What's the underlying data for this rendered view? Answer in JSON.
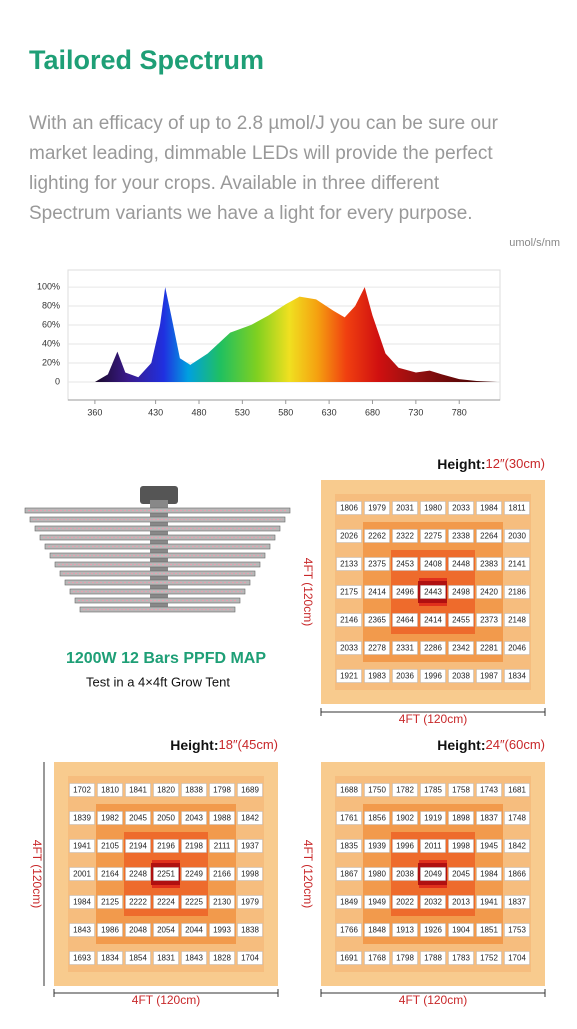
{
  "header": {
    "title": "Tailored Spectrum",
    "lines": [
      "With an efficacy of up to 2.8 µmol/J you can be sure our",
      "market leading, dimmable LEDs will provide the perfect",
      "lighting for your crops.  Available in three different",
      "Spectrum variants we have a light for every purpose."
    ]
  },
  "chart_data": {
    "type": "area",
    "unit": "umol/s/nm",
    "x": [
      360,
      375,
      386,
      395,
      410,
      425,
      435,
      441,
      448,
      458,
      470,
      490,
      516,
      540,
      560,
      580,
      596,
      615,
      635,
      648,
      660,
      671,
      680,
      695,
      710,
      730,
      746,
      760,
      780,
      800,
      824
    ],
    "values": [
      0,
      8,
      32,
      10,
      5,
      20,
      60,
      100,
      70,
      25,
      18,
      30,
      52,
      60,
      70,
      82,
      90,
      87,
      75,
      68,
      80,
      100,
      70,
      30,
      15,
      10,
      12,
      8,
      3,
      1,
      0
    ],
    "xlim": [
      329,
      827
    ],
    "xticks": [
      360,
      430,
      480,
      530,
      580,
      630,
      680,
      730,
      780
    ],
    "ylim": [
      -19,
      118
    ],
    "yticks": [
      0,
      {
        "value": 20,
        "label": "20%"
      },
      {
        "value": 40,
        "label": "40%"
      },
      {
        "value": 60,
        "label": "60%"
      },
      {
        "value": 80,
        "label": "80%"
      },
      {
        "value": 100,
        "label": "100%"
      }
    ],
    "grid": true
  },
  "product": {
    "title": "1200W 12 Bars PPFD MAP",
    "subtitle": "Test in a 4×4ft Grow Tent"
  },
  "maps": [
    {
      "height_label": "Height:",
      "height": "12″(30cm)",
      "side": "4FT (120cm)",
      "bottom": "4FT (120cm)",
      "rows": [
        [
          1806,
          1979,
          2031,
          1980,
          2033,
          1984,
          1811
        ],
        [
          2026,
          2262,
          2322,
          2275,
          2338,
          2264,
          2030
        ],
        [
          2133,
          2375,
          2453,
          2408,
          2448,
          2383,
          2141
        ],
        [
          2175,
          2414,
          2496,
          2443,
          2498,
          2420,
          2186
        ],
        [
          2146,
          2365,
          2464,
          2414,
          2455,
          2373,
          2148
        ],
        [
          2033,
          2278,
          2331,
          2286,
          2342,
          2281,
          2046
        ],
        [
          1921,
          1983,
          2036,
          1996,
          2038,
          1987,
          1834
        ]
      ]
    },
    {
      "height_label": "Height:",
      "height": "18″(45cm)",
      "side": "4FT (120cm)",
      "bottom": "4FT (120cm)",
      "rows": [
        [
          1702,
          1810,
          1841,
          1820,
          1838,
          1798,
          1689
        ],
        [
          1839,
          1982,
          2045,
          2050,
          2043,
          1988,
          1842
        ],
        [
          1941,
          2105,
          2194,
          2196,
          2198,
          2111,
          1937
        ],
        [
          2001,
          2164,
          2248,
          2251,
          2249,
          2166,
          1998
        ],
        [
          1984,
          2125,
          2222,
          2224,
          2225,
          2130,
          1979
        ],
        [
          1843,
          1986,
          2048,
          2054,
          2044,
          1993,
          1838
        ],
        [
          1693,
          1834,
          1854,
          1831,
          1843,
          1828,
          1704
        ]
      ]
    },
    {
      "height_label": "Height:",
      "height": "24″(60cm)",
      "side": "4FT (120cm)",
      "bottom": "4FT (120cm)",
      "rows": [
        [
          1688,
          1750,
          1782,
          1785,
          1758,
          1743,
          1681
        ],
        [
          1761,
          1856,
          1902,
          1919,
          1898,
          1837,
          1748
        ],
        [
          1835,
          1939,
          1996,
          2011,
          1998,
          1945,
          1842
        ],
        [
          1867,
          1980,
          2038,
          2049,
          2045,
          1984,
          1866
        ],
        [
          1849,
          1949,
          2022,
          2032,
          2013,
          1941,
          1837
        ],
        [
          1766,
          1848,
          1913,
          1926,
          1904,
          1851,
          1753
        ],
        [
          1691,
          1768,
          1798,
          1788,
          1783,
          1752,
          1704
        ]
      ]
    }
  ]
}
